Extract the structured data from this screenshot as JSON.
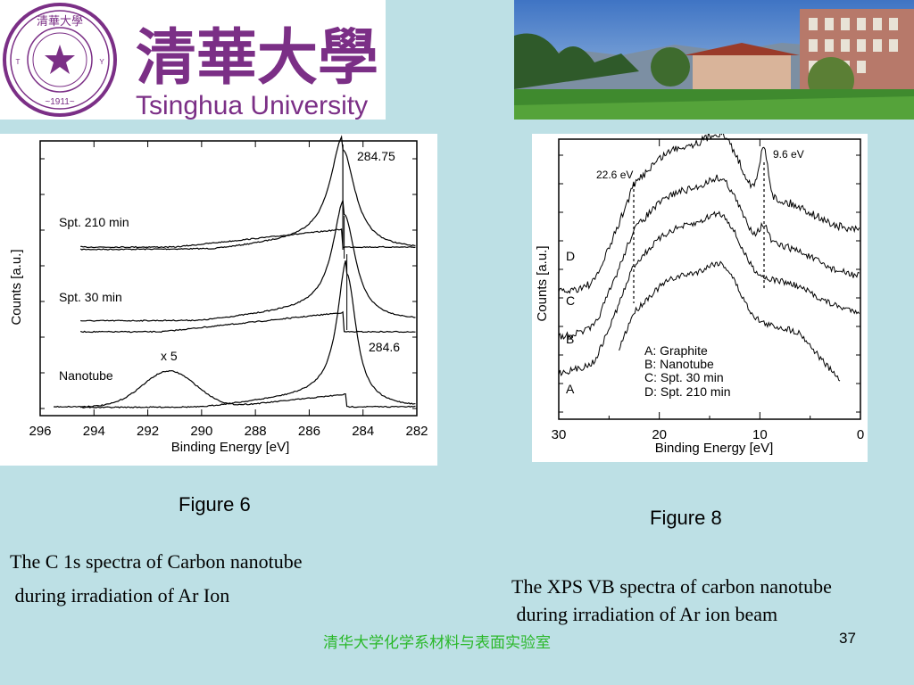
{
  "header": {
    "logo_chinese": "清華大學",
    "logo_english": "Tsinghua University",
    "seal_text": "TSINGHUA UNIVERSITY · 1911 · 清華大學"
  },
  "figures": [
    {
      "label": "Figure 6",
      "caption_line1": "The C 1s spectra of Carbon nanotube",
      "caption_line2": " during irradiation of Ar Ion",
      "chart_data": {
        "type": "line",
        "xlabel": "Binding Energy [eV]",
        "ylabel": "Counts [a.u.]",
        "xlim": [
          296,
          282
        ],
        "xticks": [
          "296",
          "294",
          "292",
          "290",
          "288",
          "286",
          "284",
          "282"
        ],
        "series": [
          {
            "name": "Spt. 210 min",
            "peak_ev": 284.75
          },
          {
            "name": "Spt. 30 min",
            "peak_ev": 284.7
          },
          {
            "name": "Nanotube",
            "peak_ev": 284.6
          }
        ],
        "annotations": [
          "284.75",
          "284.6",
          "x 5"
        ]
      }
    },
    {
      "label": "Figure 8",
      "caption_line1": "The XPS VB spectra of carbon nanotube",
      "caption_line2": " during irradiation of Ar ion beam",
      "chart_data": {
        "type": "line",
        "xlabel": "Binding Energy [eV]",
        "ylabel": "Counts [a.u.]",
        "xlim": [
          30,
          0
        ],
        "xticks": [
          "30",
          "20",
          "10",
          "0"
        ],
        "series": [
          {
            "name": "A",
            "label": "Graphite"
          },
          {
            "name": "B",
            "label": "Nanotube"
          },
          {
            "name": "C",
            "label": "Spt. 30 min"
          },
          {
            "name": "D",
            "label": "Spt. 210 min"
          }
        ],
        "legend": [
          "A: Graphite",
          "B: Nanotube",
          "C: Spt. 30 min",
          "D: Spt. 210 min"
        ],
        "annotations": [
          "22.6 eV",
          "9.6 eV"
        ],
        "marker_lines_ev": [
          22.6,
          9.6
        ]
      }
    }
  ],
  "footer": {
    "lab": "清华大学化学系材料与表面实验室",
    "page": "37"
  }
}
